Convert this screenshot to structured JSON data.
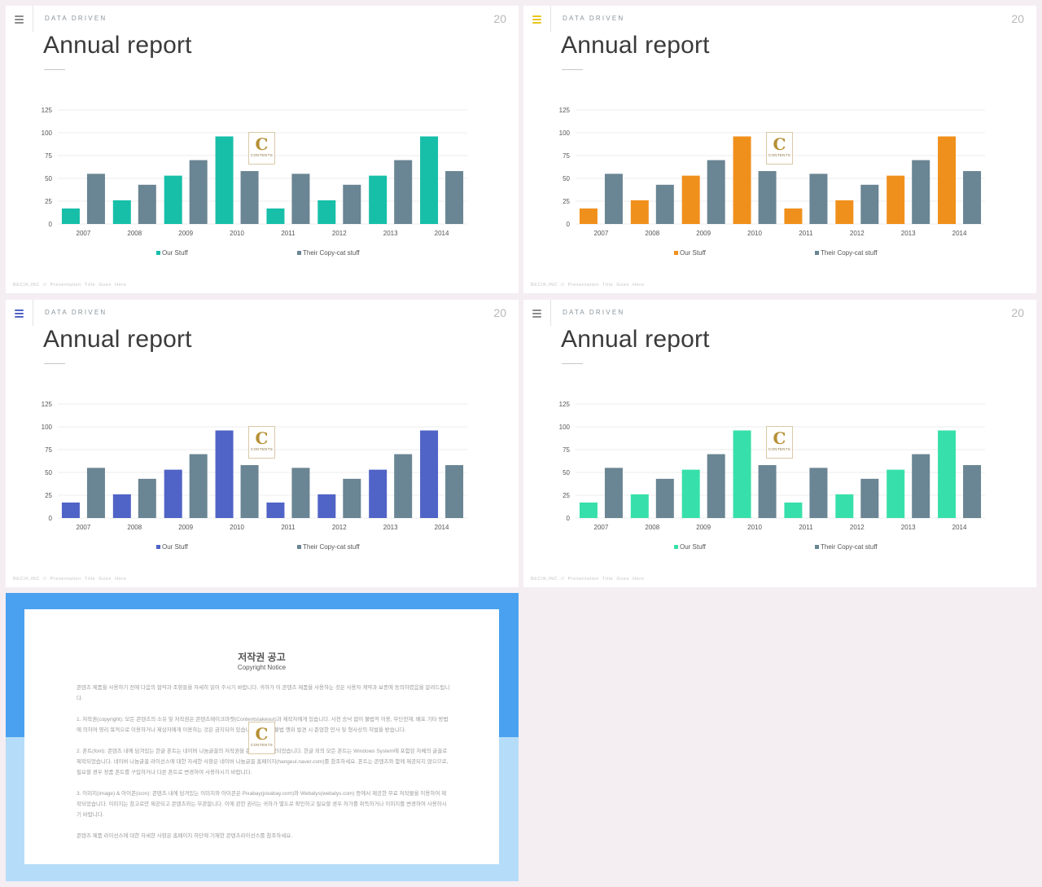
{
  "slides": [
    {
      "eyebrow": "DATA DRIVEN",
      "page_number": "20",
      "title": "Annual report",
      "footer": "BECIK,INC  //  Presentation  Title  Goes  Here",
      "accent_color": "#17bfa9",
      "menu_icon_color": "#8c8c8c",
      "watermark": {
        "letter": "C",
        "text": "CONTENTS"
      }
    },
    {
      "eyebrow": "DATA DRIVEN",
      "page_number": "20",
      "title": "Annual report",
      "footer": "BECIK,INC  //  Presentation  Title  Goes  Here",
      "accent_color": "#f0901c",
      "menu_icon_color": "#e7c51a",
      "watermark": {
        "letter": "C",
        "text": "CONTENTS"
      }
    },
    {
      "eyebrow": "DATA DRIVEN",
      "page_number": "20",
      "title": "Annual report",
      "footer": "BECIK,INC  //  Presentation  Title  Goes  Here",
      "accent_color": "#5063c6",
      "menu_icon_color": "#5063c6",
      "watermark": {
        "letter": "C",
        "text": "CONTENTS"
      }
    },
    {
      "eyebrow": "DATA DRIVEN",
      "page_number": "20",
      "title": "Annual report",
      "footer": "BECIK,INC  //  Presentation  Title  Goes  Here",
      "accent_color": "#37e0aa",
      "menu_icon_color": "#8c8c8c",
      "watermark": {
        "letter": "C",
        "text": "CONTENTS"
      }
    }
  ],
  "chart_data": {
    "type": "bar",
    "categories": [
      "2007",
      "2008",
      "2009",
      "2010",
      "2011",
      "2012",
      "2013",
      "2014"
    ],
    "series": [
      {
        "name": "Our Stuff",
        "values": [
          17,
          26,
          53,
          96,
          17,
          26,
          53,
          96
        ]
      },
      {
        "name": "Their Copy-cat stuff",
        "values": [
          55,
          43,
          70,
          58,
          55,
          43,
          70,
          58
        ]
      }
    ],
    "y_ticks": [
      "0",
      "25",
      "50",
      "75",
      "100",
      "125"
    ],
    "ylim": [
      0,
      125
    ],
    "grid": true,
    "legend_position": "bottom",
    "series2_color": "#6a8593"
  },
  "notice": {
    "title": "저작권 공고",
    "subtitle": "Copyright Notice",
    "paragraphs": [
      "콘텐츠 제품을 사용하기 전에 다음의 협약과 조항들을 자세히 읽어 주시기 바랍니다. 귀하가 이 콘텐츠 제품을 사용하는 것은 사용자 계약과 보증에 동의하였음을 알려드립니다.",
      "1. 저작권(copyright): 모든 콘텐츠의 소유 및 저작권은 콘텐츠메이크마켓(Contentstakeout)과 제작자에게 있습니다. 사전 승낙 없이 불법적 이용, 무단전재, 배포 기타 방법에 의하여 영리 목적으로 이용하거나 제삼자에게 이용하는 것은 금지되어 있습니다. 이러한 불법 행위 발견 시 준엄한 민사 및 형사상의 처벌을 받습니다.",
      "2. 폰트(font): 콘텐츠 내에 담겨있는 한글 폰트는 네이버 나눔글꼴의 저작권을 준수하여 제작되었습니다. 한글 외의 모든 폰트는 Windows System에 포함된 자체의 글꼴로 제작되었습니다. 네이버 나눔글꼴 라이선스에 대한 자세한 사항은 네이버 나눔글꼴 홈페이지(hangeul.naver.com)를 참조하세요. 폰트는 콘텐츠와 함께 제공되지 않으므로, 필요할 경우 정품 폰트를 구입하거나 다른 폰트로 변경하여 사용하시기 바랍니다.",
      "3. 이미지(image) & 아이콘(icon): 콘텐츠 내에 담겨있는 이미지와 아이콘은 Pixabay(pixabay.com)와 Webalys(webalys.com) 등에서 제공한 무료 저작물을 이용하여 제작되었습니다. 이미지는 참고로만 제공되고 콘텐츠와는 무관합니다. 이에 관한 권리는 귀하가 별도로 확인하고 필요할 경우 허가를 취득하거나 이미지를 변경하여 사용하시기 바랍니다.",
      "콘텐츠 제품 라이선스에 대한 자세한 사항은 홈페이지 하단에 기재한 콘텐츠라이선스를 참조하세요."
    ],
    "watermark": {
      "letter": "C",
      "text": "CONTENTS"
    },
    "band_color": "#4aa1f0",
    "bg_color": "#b5ddf9"
  }
}
